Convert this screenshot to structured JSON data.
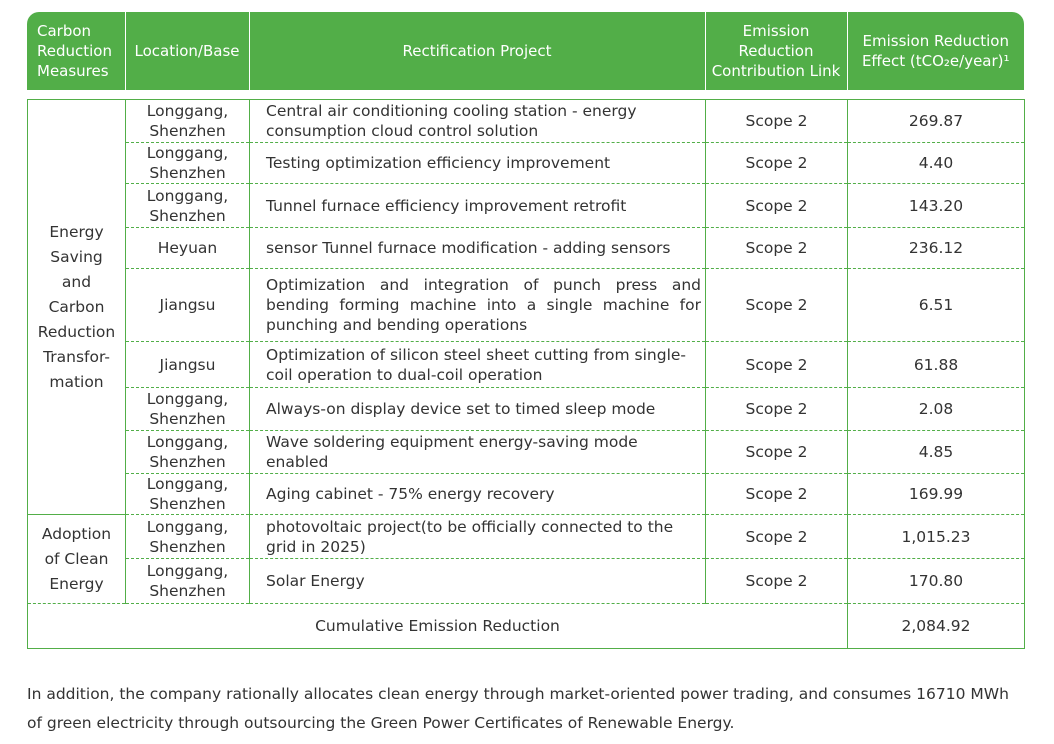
{
  "table": {
    "header": [
      "Carbon Reduction Measures",
      "Location/Base",
      "Rectification Project",
      "Emission Reduction Contribution Link",
      "Emission Reduction Effect (tCO₂e/year)¹"
    ],
    "groups": [
      {
        "label": "Energy Saving and Carbon Reduction Transfor-mation",
        "rows": 9
      },
      {
        "label": "Adoption of Clean Energy",
        "rows": 2
      }
    ],
    "rows": [
      [
        "Longgang, Shenzhen",
        "Central air conditioning cooling station - energy consumption cloud control solution",
        "Scope 2",
        "269.87"
      ],
      [
        "Longgang, Shenzhen",
        "Testing optimization efficiency improvement",
        "Scope 2",
        "4.40"
      ],
      [
        "Longgang, Shenzhen",
        "Tunnel furnace efficiency improvement retrofit",
        "Scope 2",
        "143.20"
      ],
      [
        "Heyuan",
        "sensor Tunnel furnace modification - adding sensors",
        "Scope 2",
        "236.12"
      ],
      [
        "Jiangsu",
        "Optimization and integration of punch press and bending forming machine into a single machine for punching and bending operations",
        "Scope 2",
        "6.51"
      ],
      [
        "Jiangsu",
        "Optimization of silicon steel sheet cutting from single-coil operation to dual-coil operation",
        "Scope 2",
        "61.88"
      ],
      [
        "Longgang, Shenzhen",
        "Always-on display device set to timed sleep mode",
        "Scope 2",
        "2.08"
      ],
      [
        "Longgang, Shenzhen",
        "Wave soldering equipment energy-saving mode enabled",
        "Scope 2",
        "4.85"
      ],
      [
        "Longgang, Shenzhen",
        "Aging cabinet - 75% energy recovery",
        "Scope 2",
        "169.99"
      ],
      [
        "Longgang, Shenzhen",
        "photovoltaic project(to be officially connected to the grid in 2025)",
        "Scope 2",
        "1,015.23"
      ],
      [
        "Longgang, Shenzhen",
        "Solar Energy",
        "Scope 2",
        "170.80"
      ]
    ],
    "total": {
      "label": "Cumulative Emission Reduction",
      "value": "2,084.92"
    }
  },
  "note": "In addition, the company rationally allocates clean energy through market-oriented power trading, and consumes 16710 MWh of green electricity through outsourcing the Green Power Certificates of Renewable Energy."
}
